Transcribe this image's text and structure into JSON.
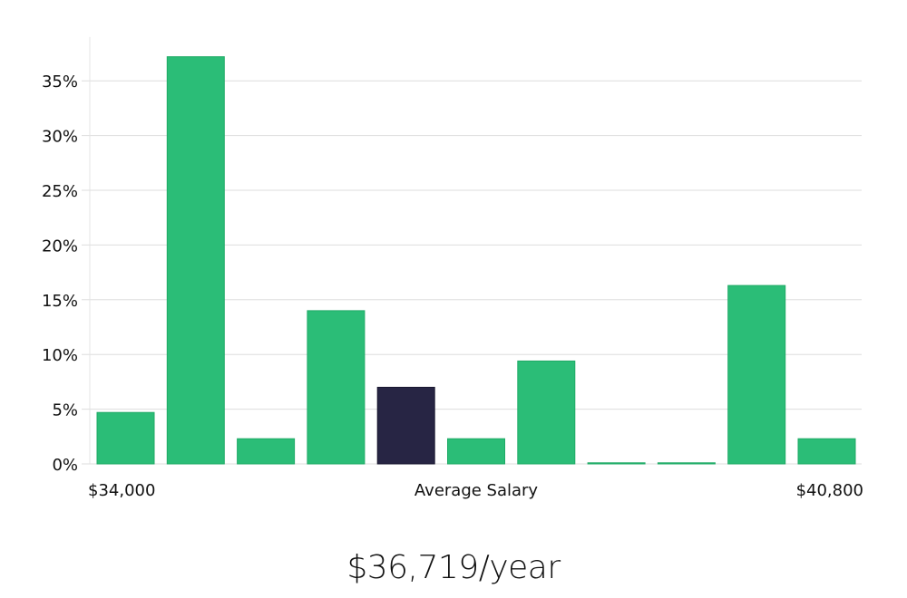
{
  "chart_data": {
    "type": "bar",
    "title": "",
    "xlabel": "Average Salary",
    "ylabel": "",
    "x_range_labels": [
      "$34,000",
      "$40,800"
    ],
    "ylim": [
      0,
      0.39
    ],
    "y_ticks": [
      0,
      0.05,
      0.1,
      0.15,
      0.2,
      0.25,
      0.3,
      0.35
    ],
    "y_tick_labels": [
      "0%",
      "5%",
      "10%",
      "15%",
      "20%",
      "25%",
      "30%",
      "35%"
    ],
    "values": [
      0.047,
      0.372,
      0.023,
      0.14,
      0.07,
      0.023,
      0.094,
      0.001,
      0.001,
      0.163,
      0.023
    ],
    "highlight_index": 4,
    "grid": true
  },
  "colors": {
    "bar": "#2bbd77",
    "bar_stroke": "#1faa66",
    "highlight": "#272544",
    "grid": "#dddddd",
    "axis": "#e4e4e4"
  },
  "salary": {
    "display": "$36,719/year"
  }
}
